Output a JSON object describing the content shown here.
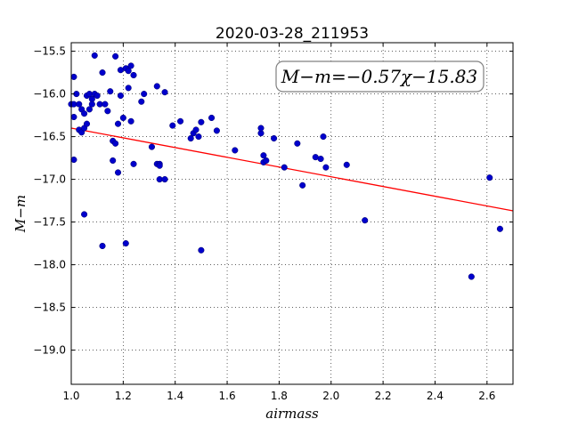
{
  "chart_data": {
    "type": "scatter",
    "title": "2020-03-28_211953",
    "xlabel": "airmass",
    "ylabel": "M−m",
    "xlim": [
      1.0,
      2.7
    ],
    "ylim": [
      -19.4,
      -15.4
    ],
    "y_inverted": true,
    "grid": true,
    "x_ticks": [
      1.0,
      1.2,
      1.4,
      1.6,
      1.8,
      2.0,
      2.2,
      2.4,
      2.6
    ],
    "x_tick_labels": [
      "1.0",
      "1.2",
      "1.4",
      "1.6",
      "1.8",
      "2.0",
      "2.2",
      "2.4",
      "2.6"
    ],
    "y_ticks": [
      -15.5,
      -16.0,
      -16.5,
      -17.0,
      -17.5,
      -18.0,
      -18.5,
      -19.0
    ],
    "y_tick_labels": [
      "−15.5",
      "−16.0",
      "−16.5",
      "−17.0",
      "−17.5",
      "−18.0",
      "−18.5",
      "−19.0"
    ],
    "annotation": "M−m=−0.57χ−15.83",
    "fit_line": {
      "slope": -0.57,
      "intercept": -15.83,
      "color": "#ff0000"
    },
    "point_color": "#0000cc",
    "series": [
      {
        "x": [
          1.0,
          1.01,
          1.01,
          1.01,
          1.02,
          1.03,
          1.03,
          1.04,
          1.04,
          1.05,
          1.05,
          1.06,
          1.06,
          1.07,
          1.07,
          1.08,
          1.08,
          1.09,
          1.09,
          1.1,
          1.11,
          1.12,
          1.13,
          1.14,
          1.15,
          1.16,
          1.16,
          1.17,
          1.17,
          1.18,
          1.18,
          1.19,
          1.19,
          1.2,
          1.21,
          1.22,
          1.22,
          1.23,
          1.23,
          1.24,
          1.24,
          1.27,
          1.28,
          1.31,
          1.33,
          1.33,
          1.34,
          1.34,
          1.34,
          1.36,
          1.36,
          1.39,
          1.42,
          1.46,
          1.47,
          1.48,
          1.49,
          1.5,
          1.54,
          1.56,
          1.63,
          1.73,
          1.73,
          1.74,
          1.74,
          1.75,
          1.78,
          1.82,
          1.87,
          1.89,
          1.94,
          1.96,
          1.97,
          1.98,
          2.06,
          2.13,
          2.54,
          2.61,
          2.65,
          1.01,
          1.05,
          1.12,
          1.21,
          1.5
        ],
        "y": [
          -16.12,
          -15.8,
          -16.12,
          -16.27,
          -16.0,
          -16.12,
          -16.42,
          -16.18,
          -16.45,
          -16.23,
          -16.4,
          -16.02,
          -16.35,
          -16.18,
          -16.0,
          -16.06,
          -16.12,
          -16.0,
          -15.55,
          -16.02,
          -16.12,
          -15.75,
          -16.12,
          -16.2,
          -15.97,
          -16.55,
          -16.78,
          -15.56,
          -16.58,
          -16.35,
          -16.92,
          -15.72,
          -16.02,
          -16.28,
          -15.7,
          -15.93,
          -15.73,
          -15.67,
          -16.32,
          -16.82,
          -15.78,
          -16.09,
          -16.0,
          -16.62,
          -15.91,
          -16.82,
          -16.82,
          -16.84,
          -17.0,
          -15.98,
          -17.0,
          -16.37,
          -16.32,
          -16.52,
          -16.46,
          -16.42,
          -16.5,
          -16.33,
          -16.28,
          -16.43,
          -16.66,
          -16.46,
          -16.4,
          -16.72,
          -16.8,
          -16.78,
          -16.52,
          -16.86,
          -16.58,
          -17.07,
          -16.74,
          -16.76,
          -16.5,
          -16.86,
          -16.83,
          -17.48,
          -18.14,
          -16.98,
          -17.58,
          -16.77,
          -17.41,
          -17.78,
          -17.75,
          -17.83
        ]
      }
    ]
  }
}
